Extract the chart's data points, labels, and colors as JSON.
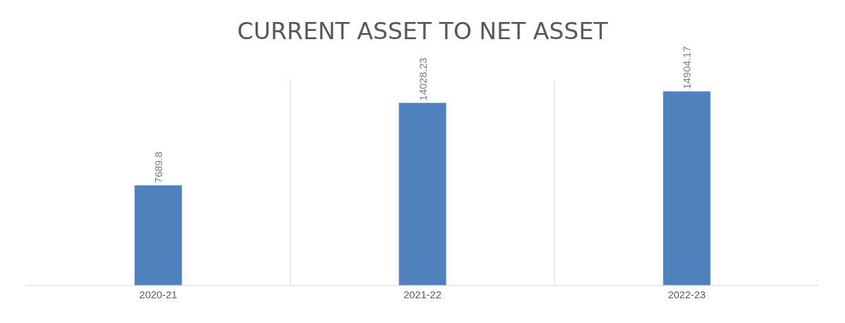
{
  "chart_data": {
    "type": "bar",
    "title": "CURRENT ASSET TO NET ASSET",
    "categories": [
      "2020-21",
      "2021-22",
      "2022-23"
    ],
    "values": [
      7689.8,
      14028.23,
      14904.17
    ],
    "color": "#4f81bd",
    "data_labels": true,
    "grid": "x"
  }
}
